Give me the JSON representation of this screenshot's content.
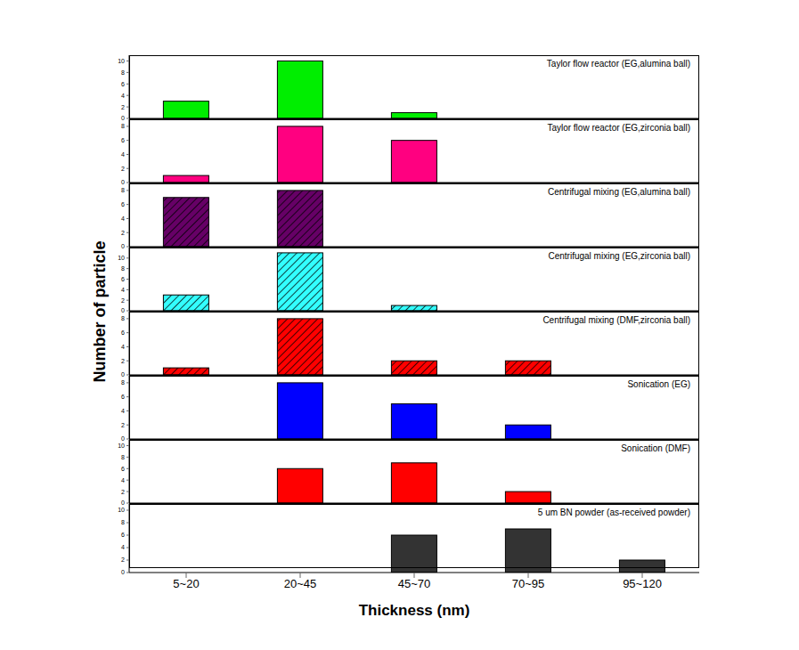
{
  "chart_data": [
    {
      "type": "bar",
      "title": "Taylor flow reactor (EG,alumina ball)",
      "categories": [
        "5~20",
        "20~45",
        "45~70",
        "70~95",
        "95~120"
      ],
      "values": [
        3,
        10,
        1,
        0,
        0
      ],
      "color": "#00ee00",
      "ylim": [
        0,
        11
      ],
      "yticks": [
        0,
        2,
        4,
        6,
        8,
        10
      ],
      "tick_labels": "y"
    },
    {
      "type": "bar",
      "title": "Taylor flow reactor (EG,zirconia ball)",
      "categories": [
        "5~20",
        "20~45",
        "45~70",
        "70~95",
        "95~120"
      ],
      "values": [
        1,
        8,
        6,
        0,
        0
      ],
      "color": "#ff0080",
      "ylim": [
        0,
        9
      ],
      "yticks": [
        0,
        2,
        4,
        6,
        8
      ],
      "tick_labels": "y"
    },
    {
      "type": "bar",
      "title": "Centrifugal mixing (EG,alumina ball)",
      "categories": [
        "5~20",
        "20~45",
        "45~70",
        "70~95",
        "95~120"
      ],
      "values": [
        7,
        8,
        0,
        0,
        0
      ],
      "color": "#660066",
      "ylim": [
        0,
        9
      ],
      "yticks": [
        0,
        2,
        4,
        6,
        8
      ],
      "tick_labels": "y"
    },
    {
      "type": "bar",
      "title": "Centrifugal mixing (EG,zirconia ball)",
      "categories": [
        "5~20",
        "20~45",
        "45~70",
        "70~95",
        "95~120"
      ],
      "values": [
        3,
        11,
        1,
        0,
        0
      ],
      "color": "#33ffff",
      "ylim": [
        0,
        12
      ],
      "yticks": [
        0,
        2,
        4,
        6,
        8,
        10
      ],
      "tick_labels": "y"
    },
    {
      "type": "bar",
      "title": "Centrifugal mixing (DMF,zirconia ball)",
      "categories": [
        "5~20",
        "20~45",
        "45~70",
        "70~95",
        "95~120"
      ],
      "values": [
        1,
        8,
        2,
        2,
        0
      ],
      "color": "#ff0000",
      "ylim": [
        0,
        9
      ],
      "yticks": [
        0,
        2,
        4,
        6,
        8
      ],
      "tick_labels": "y"
    },
    {
      "type": "bar",
      "title": "Sonication (EG)",
      "categories": [
        "5~20",
        "20~45",
        "45~70",
        "70~95",
        "95~120"
      ],
      "values": [
        0,
        8,
        5,
        2,
        0
      ],
      "color": "#0000ff",
      "ylim": [
        0,
        9
      ],
      "yticks": [
        0,
        2,
        4,
        6,
        8
      ],
      "tick_labels": "y"
    },
    {
      "type": "bar",
      "title": "Sonication (DMF)",
      "categories": [
        "5~20",
        "20~45",
        "45~70",
        "70~95",
        "95~120"
      ],
      "values": [
        0,
        6,
        7,
        2,
        0
      ],
      "color": "#ff0000",
      "ylim": [
        0,
        11
      ],
      "yticks": [
        0,
        2,
        4,
        6,
        8,
        10
      ],
      "tick_labels": "y"
    },
    {
      "type": "bar",
      "title": "5 um BN powder (as-received powder)",
      "categories": [
        "5~20",
        "20~45",
        "45~70",
        "70~95",
        "95~120"
      ],
      "values": [
        0,
        0,
        6,
        7,
        2
      ],
      "color": "#333333",
      "ylim": [
        0,
        11
      ],
      "yticks": [
        0,
        2,
        4,
        6,
        8,
        10
      ],
      "tick_labels": true
    }
  ],
  "xlabel": "Thickness (nm)",
  "ylabel": "Number of particle"
}
